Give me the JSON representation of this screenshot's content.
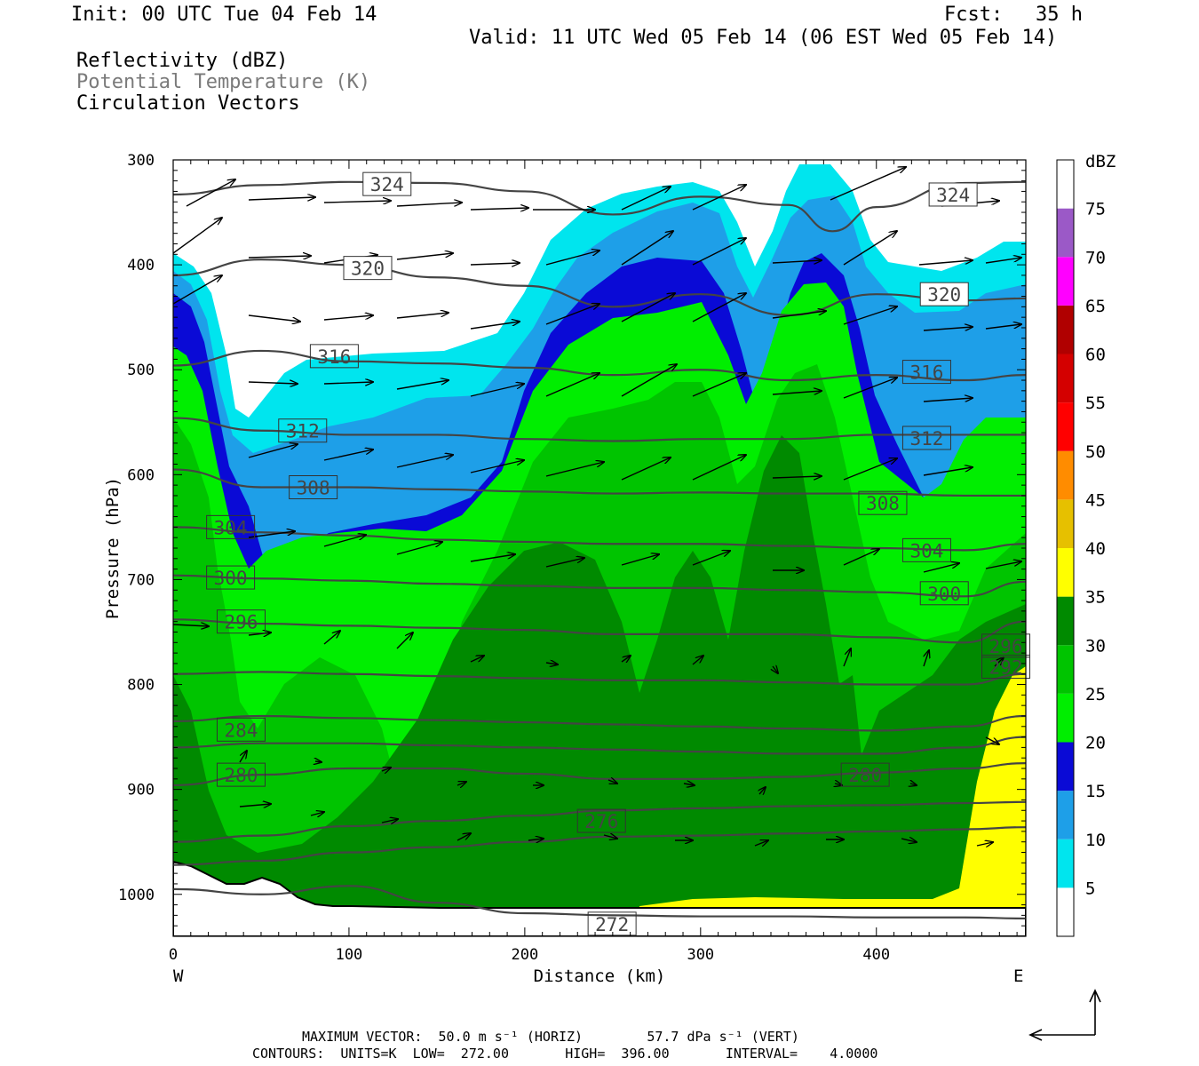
{
  "header": {
    "init": "Init: 00 UTC Tue 04 Feb 14",
    "fcst_label": "Fcst:",
    "fcst_value": "35 h",
    "valid": "Valid: 11 UTC Wed 05 Feb 14 (06 EST Wed 05 Feb 14)"
  },
  "fields": {
    "reflectivity": "Reflectivity (dBZ)",
    "potential_temperature": "Potential Temperature (K)",
    "circulation": "Circulation Vectors"
  },
  "footer": {
    "max_vector": "MAXIMUM VECTOR:  50.0 m s⁻¹ (HORIZ)        57.7 dPa s⁻¹ (VERT)",
    "contours": "CONTOURS:  UNITS=K  LOW=  272.00       HIGH=  396.00       INTERVAL=    4.0000"
  },
  "colors": {
    "white": "#ffffff",
    "cyan": "#00e5ee",
    "lightblue": "#1e9fe8",
    "blue": "#0a0ad6",
    "green_bright": "#00ee00",
    "green_mid": "#00c400",
    "green_dark": "#008a00",
    "yellow": "#ffff00",
    "contour": "#444444"
  },
  "chart_data": {
    "type": "cross-section",
    "xlabel": "Distance (km)",
    "ylabel": "Pressure (hPa)",
    "xlim": [
      0,
      485
    ],
    "ylim": [
      1040,
      300
    ],
    "x_ticks": [
      "0",
      "100",
      "200",
      "300",
      "400"
    ],
    "x_tick_values": [
      0,
      100,
      200,
      300,
      400
    ],
    "y_ticks": [
      "300",
      "400",
      "500",
      "600",
      "700",
      "800",
      "900",
      "1000"
    ],
    "y_tick_values": [
      300,
      400,
      500,
      600,
      700,
      800,
      900,
      1000
    ],
    "west_label": "W",
    "east_label": "E",
    "colorbar": {
      "unit": "dBZ",
      "levels": [
        "5",
        "10",
        "15",
        "20",
        "25",
        "30",
        "35",
        "40",
        "45",
        "50",
        "55",
        "60",
        "65",
        "70",
        "75"
      ],
      "colors": [
        "#ffffff",
        "#00e5ee",
        "#1e9fe8",
        "#0a0ad6",
        "#00ee00",
        "#00c400",
        "#008a00",
        "#ffff00",
        "#e6c000",
        "#ff8c00",
        "#ff0000",
        "#d40000",
        "#b00000",
        "#ff00ff",
        "#9b59c7",
        "#ffffff"
      ]
    },
    "theta_contours": [
      {
        "label": "324",
        "label_x": 108,
        "label_p": 323,
        "x": [
          0,
          50,
          100,
          150,
          200,
          250,
          300,
          350,
          375,
          400,
          450,
          485
        ],
        "p": [
          333,
          324,
          321,
          322,
          330,
          352,
          335,
          343,
          368,
          345,
          322,
          321
        ]
      },
      {
        "label": "324",
        "label_x": 430,
        "label_p": 333
      },
      {
        "label": "320",
        "label_x": 97,
        "label_p": 403,
        "x": [
          0,
          50,
          100,
          150,
          200,
          250,
          300,
          350,
          400,
          450,
          485
        ],
        "p": [
          410,
          395,
          400,
          412,
          420,
          440,
          428,
          448,
          428,
          434,
          432
        ]
      },
      {
        "label": "320",
        "label_x": 425,
        "label_p": 428
      },
      {
        "label": "316",
        "label_x": 78,
        "label_p": 487,
        "x": [
          0,
          50,
          100,
          150,
          200,
          250,
          300,
          350,
          400,
          450,
          485
        ],
        "p": [
          496,
          482,
          492,
          494,
          498,
          505,
          500,
          510,
          505,
          510,
          505
        ]
      },
      {
        "label": "316",
        "label_x": 415,
        "label_p": 502
      },
      {
        "label": "312",
        "label_x": 60,
        "label_p": 558,
        "x": [
          0,
          50,
          100,
          150,
          200,
          250,
          300,
          350,
          400,
          450,
          485
        ],
        "p": [
          546,
          558,
          562,
          562,
          566,
          568,
          566,
          566,
          562,
          562,
          562
        ]
      },
      {
        "label": "312",
        "label_x": 415,
        "label_p": 565
      },
      {
        "label": "308",
        "label_x": 66,
        "label_p": 612,
        "x": [
          0,
          50,
          100,
          150,
          200,
          250,
          300,
          350,
          400,
          450,
          485
        ],
        "p": [
          595,
          612,
          612,
          614,
          616,
          618,
          617,
          618,
          618,
          620,
          620
        ]
      },
      {
        "label": "308",
        "label_x": 390,
        "label_p": 627
      },
      {
        "label": "304",
        "label_x": 19,
        "label_p": 650,
        "x": [
          0,
          50,
          100,
          150,
          200,
          250,
          300,
          350,
          400,
          450,
          485
        ],
        "p": [
          650,
          655,
          658,
          662,
          664,
          666,
          666,
          668,
          670,
          672,
          666
        ]
      },
      {
        "label": "304",
        "label_x": 415,
        "label_p": 672
      },
      {
        "label": "300",
        "label_x": 19,
        "label_p": 698,
        "x": [
          0,
          50,
          100,
          150,
          200,
          250,
          300,
          350,
          400,
          450,
          485
        ],
        "p": [
          696,
          699,
          701,
          704,
          706,
          708,
          708,
          710,
          712,
          716,
          702
        ]
      },
      {
        "label": "300",
        "label_x": 425,
        "label_p": 713
      },
      {
        "label": "296",
        "label_x": 25,
        "label_p": 740,
        "x": [
          0,
          50,
          100,
          150,
          200,
          250,
          300,
          350,
          400,
          450,
          485
        ],
        "p": [
          738,
          742,
          744,
          746,
          748,
          752,
          752,
          752,
          755,
          760,
          740
        ]
      },
      {
        "label": "296",
        "label_x": 460,
        "label_p": 763
      },
      {
        "x": [
          0,
          50,
          100,
          150,
          200,
          250,
          300,
          350,
          400,
          450,
          485
        ],
        "p": [
          790,
          788,
          790,
          792,
          794,
          796,
          796,
          798,
          800,
          800,
          790
        ]
      },
      {
        "label": "292",
        "label_x": 460,
        "label_p": 783
      },
      {
        "x": [
          0,
          50,
          100,
          150,
          200,
          250,
          300,
          350,
          400,
          450,
          485
        ],
        "p": [
          835,
          830,
          832,
          834,
          836,
          838,
          840,
          842,
          844,
          840,
          830
        ]
      },
      {
        "label": "284",
        "label_x": 25,
        "label_p": 843,
        "x": [
          0,
          50,
          100,
          150,
          200,
          250,
          300,
          350,
          400,
          450,
          485
        ],
        "p": [
          860,
          856,
          856,
          858,
          860,
          862,
          864,
          866,
          866,
          860,
          850
        ]
      },
      {
        "label": "280",
        "label_x": 25,
        "label_p": 886,
        "x": [
          0,
          50,
          100,
          150,
          200,
          250,
          300,
          350,
          400,
          450,
          485
        ],
        "p": [
          896,
          886,
          880,
          880,
          885,
          890,
          890,
          888,
          884,
          880,
          875
        ]
      },
      {
        "label": "280",
        "label_x": 380,
        "label_p": 886
      },
      {
        "label": "276",
        "label_x": 230,
        "label_p": 930,
        "x": [
          0,
          50,
          100,
          150,
          200,
          250,
          300,
          350,
          400,
          450,
          485
        ],
        "p": [
          950,
          944,
          935,
          930,
          925,
          920,
          918,
          916,
          915,
          913,
          912
        ]
      },
      {
        "x": [
          0,
          50,
          100,
          150,
          200,
          250,
          300,
          350,
          400,
          450,
          485
        ],
        "p": [
          972,
          968,
          960,
          955,
          950,
          945,
          944,
          942,
          940,
          938,
          936
        ]
      },
      {
        "label": "272",
        "label_x": 236,
        "label_p": 1028,
        "x": [
          0,
          50,
          100,
          150,
          200,
          250,
          300,
          350,
          400,
          450,
          485
        ],
        "p": [
          995,
          1000,
          992,
          1008,
          1018,
          1020,
          1021,
          1021,
          1022,
          1022,
          1023
        ]
      }
    ],
    "terrain": {
      "x": [
        0,
        20,
        40,
        60,
        80,
        100,
        120,
        140,
        160,
        180,
        200,
        250,
        300,
        350,
        400,
        450,
        485
      ],
      "p": [
        970,
        975,
        985,
        995,
        995,
        988,
        995,
        1010,
        1018,
        1020,
        1020,
        1021,
        1022,
        1022,
        1022,
        1022,
        1022
      ]
    }
  }
}
